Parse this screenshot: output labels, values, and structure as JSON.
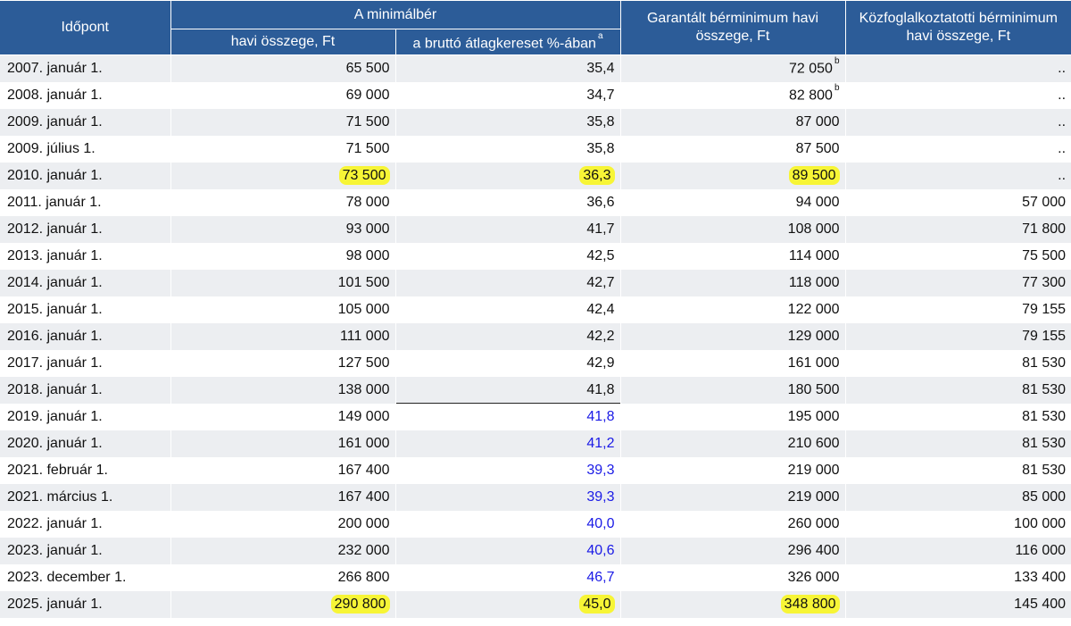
{
  "header": {
    "date_col": "Időpont",
    "minwage_group": "A minimálbér",
    "monthly_amount": "havi összege, Ft",
    "pct_of_avg": "a bruttó átlagkereset %-ában",
    "pct_note": "a",
    "guaranteed": "Garantált bérminimum havi összege, Ft",
    "public_work": "Közfoglalkoztatotti bérminimum havi összege, Ft"
  },
  "rows": [
    {
      "date": "2007. január 1.",
      "min": "65 500",
      "pct": "35,4",
      "gar": "72 050",
      "gar_note": "b",
      "pub": ".."
    },
    {
      "date": "2008. január 1.",
      "min": "69 000",
      "pct": "34,7",
      "gar": "82 800",
      "gar_note": "b",
      "pub": ".."
    },
    {
      "date": "2009. január 1.",
      "min": "71 500",
      "pct": "35,8",
      "gar": "87 000",
      "gar_note": "",
      "pub": ".."
    },
    {
      "date": "2009. július 1.",
      "min": "71 500",
      "pct": "35,8",
      "gar": "87 500",
      "gar_note": "",
      "pub": ".."
    },
    {
      "date": "2010. január 1.",
      "min": "73 500",
      "pct": "36,3",
      "gar": "89 500",
      "gar_note": "",
      "pub": ".."
    },
    {
      "date": "2011. január 1.",
      "min": "78 000",
      "pct": "36,6",
      "gar": "94 000",
      "gar_note": "",
      "pub": "57 000"
    },
    {
      "date": "2012. január 1.",
      "min": "93 000",
      "pct": "41,7",
      "gar": "108 000",
      "gar_note": "",
      "pub": "71 800"
    },
    {
      "date": "2013. január 1.",
      "min": "98 000",
      "pct": "42,5",
      "gar": "114 000",
      "gar_note": "",
      "pub": "75 500"
    },
    {
      "date": "2014. január 1.",
      "min": "101 500",
      "pct": "42,7",
      "gar": "118 000",
      "gar_note": "",
      "pub": "77 300"
    },
    {
      "date": "2015. január 1.",
      "min": "105 000",
      "pct": "42,4",
      "gar": "122 000",
      "gar_note": "",
      "pub": "79 155"
    },
    {
      "date": "2016. január 1.",
      "min": "111 000",
      "pct": "42,2",
      "gar": "129 000",
      "gar_note": "",
      "pub": "79 155"
    },
    {
      "date": "2017. január 1.",
      "min": "127 500",
      "pct": "42,9",
      "gar": "161 000",
      "gar_note": "",
      "pub": "81 530"
    },
    {
      "date": "2018. január 1.",
      "min": "138 000",
      "pct": "41,8",
      "gar": "180 500",
      "gar_note": "",
      "pub": "81 530"
    },
    {
      "date": "2019. január 1.",
      "min": "149 000",
      "pct": "41,8",
      "gar": "195 000",
      "gar_note": "",
      "pub": "81 530"
    },
    {
      "date": "2020. január 1.",
      "min": "161 000",
      "pct": "41,2",
      "gar": "210 600",
      "gar_note": "",
      "pub": "81 530"
    },
    {
      "date": "2021. február 1.",
      "min": "167 400",
      "pct": "39,3",
      "gar": "219 000",
      "gar_note": "",
      "pub": "81 530"
    },
    {
      "date": "2021. március 1.",
      "min": "167 400",
      "pct": "39,3",
      "gar": "219 000",
      "gar_note": "",
      "pub": "85 000"
    },
    {
      "date": "2022. január 1.",
      "min": "200 000",
      "pct": "40,0",
      "gar": "260 000",
      "gar_note": "",
      "pub": "100 000"
    },
    {
      "date": "2023. január 1.",
      "min": "232 000",
      "pct": "40,6",
      "gar": "296 400",
      "gar_note": "",
      "pub": "116 000"
    },
    {
      "date": "2023. december 1.",
      "min": "266 800",
      "pct": "46,7",
      "gar": "326 000",
      "gar_note": "",
      "pub": "133 400"
    },
    {
      "date": "2025. január 1.",
      "min": "290 800",
      "pct": "45,0",
      "gar": "348 800",
      "gar_note": "",
      "pub": "145 400"
    }
  ],
  "highlight_rows": [
    4,
    20
  ],
  "highlight_cols": [
    "min",
    "pct",
    "gar"
  ],
  "blue_pct_from_row": 13,
  "colors": {
    "header_bg": "#2c5c98",
    "row_alt_bg": "#eceef1",
    "highlight": "#f7f536",
    "blue_text": "#1a1ae6"
  }
}
